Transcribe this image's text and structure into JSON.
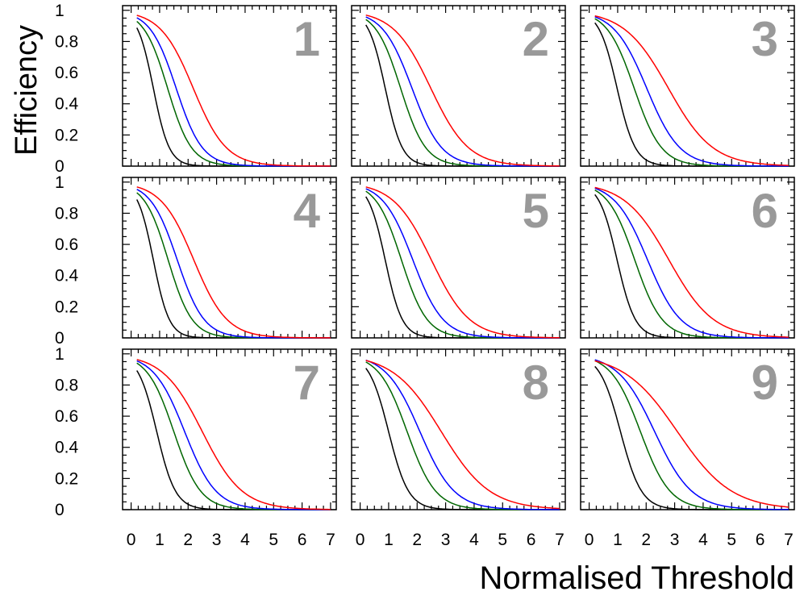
{
  "chart_data": {
    "type": "line",
    "layout": "3x3 grid of panels with shared axes",
    "xlabel": "Normalised Threshold",
    "ylabel": "Efficiency",
    "xlim": [
      -0.3,
      7.2
    ],
    "ylim": [
      0,
      1.03
    ],
    "x_ticks": [
      0,
      1,
      2,
      3,
      4,
      5,
      6,
      7
    ],
    "x_tick_labels": [
      "0",
      "1",
      "2",
      "3",
      "4",
      "5",
      "6",
      "7"
    ],
    "y_ticks": [
      0,
      0.2,
      0.4,
      0.6,
      0.8,
      1
    ],
    "y_tick_labels": [
      "0",
      "0.2",
      "0.4",
      "0.6",
      "0.8",
      "1"
    ],
    "series_colors": [
      "#000000",
      "#006600",
      "#0000ff",
      "#ff0000"
    ],
    "series_order_note": "Curves from left to right: black, green, blue, red",
    "series_params": {
      "note": "Each curve approximated as a logistic falloff: efficiency(x) = 1 / (1 + exp((x - midpoint) / width)), sampled from x = 0.2 to 7",
      "panels": [
        {
          "number": "1",
          "curves": [
            {
              "color": "#000000",
              "midpoint": 0.78,
              "width": 0.28
            },
            {
              "color": "#006600",
              "midpoint": 1.28,
              "width": 0.42
            },
            {
              "color": "#0000ff",
              "midpoint": 1.58,
              "width": 0.46
            },
            {
              "color": "#ff0000",
              "midpoint": 2.18,
              "width": 0.58
            }
          ]
        },
        {
          "number": "2",
          "curves": [
            {
              "color": "#000000",
              "midpoint": 0.88,
              "width": 0.3
            },
            {
              "color": "#006600",
              "midpoint": 1.42,
              "width": 0.44
            },
            {
              "color": "#0000ff",
              "midpoint": 1.82,
              "width": 0.52
            },
            {
              "color": "#ff0000",
              "midpoint": 2.48,
              "width": 0.66
            }
          ]
        },
        {
          "number": "3",
          "curves": [
            {
              "color": "#000000",
              "midpoint": 0.98,
              "width": 0.32
            },
            {
              "color": "#006600",
              "midpoint": 1.58,
              "width": 0.48
            },
            {
              "color": "#0000ff",
              "midpoint": 2.02,
              "width": 0.58
            },
            {
              "color": "#ff0000",
              "midpoint": 2.78,
              "width": 0.78
            }
          ]
        },
        {
          "number": "4",
          "curves": [
            {
              "color": "#000000",
              "midpoint": 0.78,
              "width": 0.28
            },
            {
              "color": "#006600",
              "midpoint": 1.3,
              "width": 0.42
            },
            {
              "color": "#0000ff",
              "midpoint": 1.62,
              "width": 0.47
            },
            {
              "color": "#ff0000",
              "midpoint": 2.2,
              "width": 0.58
            }
          ]
        },
        {
          "number": "5",
          "curves": [
            {
              "color": "#000000",
              "midpoint": 0.88,
              "width": 0.3
            },
            {
              "color": "#006600",
              "midpoint": 1.45,
              "width": 0.45
            },
            {
              "color": "#0000ff",
              "midpoint": 1.85,
              "width": 0.53
            },
            {
              "color": "#ff0000",
              "midpoint": 2.5,
              "width": 0.67
            }
          ]
        },
        {
          "number": "6",
          "curves": [
            {
              "color": "#000000",
              "midpoint": 0.98,
              "width": 0.32
            },
            {
              "color": "#006600",
              "midpoint": 1.6,
              "width": 0.48
            },
            {
              "color": "#0000ff",
              "midpoint": 2.05,
              "width": 0.58
            },
            {
              "color": "#ff0000",
              "midpoint": 2.8,
              "width": 0.78
            }
          ]
        },
        {
          "number": "7",
          "curves": [
            {
              "color": "#000000",
              "midpoint": 0.9,
              "width": 0.33
            },
            {
              "color": "#006600",
              "midpoint": 1.5,
              "width": 0.47
            },
            {
              "color": "#0000ff",
              "midpoint": 1.88,
              "width": 0.55
            },
            {
              "color": "#ff0000",
              "midpoint": 2.5,
              "width": 0.7
            }
          ]
        },
        {
          "number": "8",
          "curves": [
            {
              "color": "#000000",
              "midpoint": 1.0,
              "width": 0.35
            },
            {
              "color": "#006600",
              "midpoint": 1.65,
              "width": 0.5
            },
            {
              "color": "#0000ff",
              "midpoint": 2.1,
              "width": 0.6
            },
            {
              "color": "#ff0000",
              "midpoint": 2.85,
              "width": 0.85
            }
          ]
        },
        {
          "number": "9",
          "curves": [
            {
              "color": "#000000",
              "midpoint": 1.1,
              "width": 0.37
            },
            {
              "color": "#006600",
              "midpoint": 1.8,
              "width": 0.52
            },
            {
              "color": "#0000ff",
              "midpoint": 2.3,
              "width": 0.65
            },
            {
              "color": "#ff0000",
              "midpoint": 3.1,
              "width": 0.95
            }
          ]
        }
      ]
    },
    "panels": [
      {
        "number": "1"
      },
      {
        "number": "2"
      },
      {
        "number": "3"
      },
      {
        "number": "4"
      },
      {
        "number": "5"
      },
      {
        "number": "6"
      },
      {
        "number": "7"
      },
      {
        "number": "8"
      },
      {
        "number": "9"
      }
    ]
  }
}
